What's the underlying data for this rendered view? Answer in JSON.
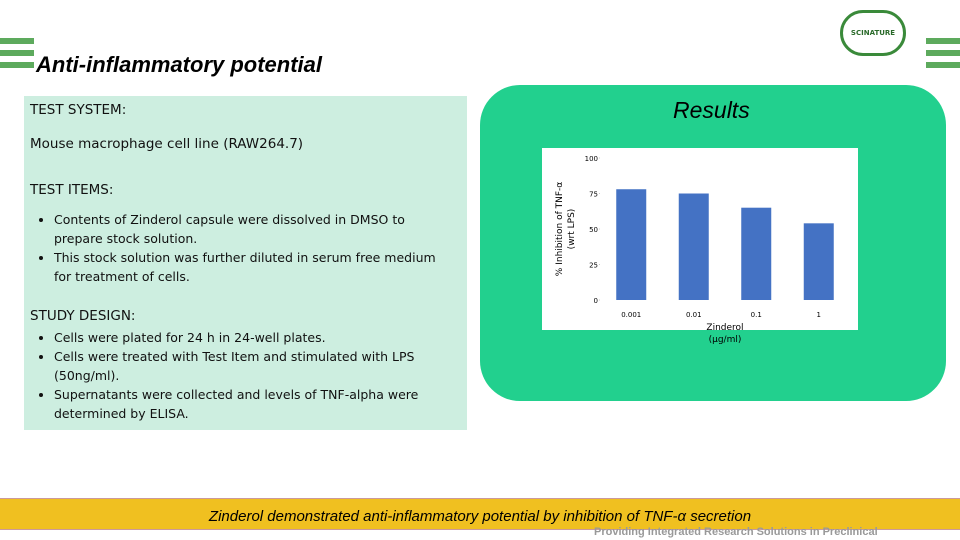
{
  "header": {
    "title": "Anti-inflammatory potential",
    "logo": "SCINATURE"
  },
  "left": {
    "test_system_heading": "TEST SYSTEM:",
    "test_system": "Mouse macrophage cell line (RAW264.7)",
    "test_items_heading": "TEST ITEMS:",
    "test_items": [
      "Contents of Zinderol capsule were dissolved in DMSO to prepare stock solution.",
      "This stock solution was further diluted in serum free medium for treatment of cells."
    ],
    "study_design_heading": "STUDY DESIGN:",
    "study_design": [
      "Cells were plated for 24 h in 24-well plates.",
      "Cells were treated with Test Item and stimulated with LPS (50ng/ml).",
      "Supernatants were collected and levels of TNF-alpha were determined by ELISA."
    ]
  },
  "results": {
    "title": "Results"
  },
  "chart_data": {
    "type": "bar",
    "categories": [
      "0.001",
      "0.01",
      "0.1",
      "1"
    ],
    "values": [
      78,
      75,
      65,
      54
    ],
    "color": "#4472c4",
    "ylim": [
      0,
      100
    ],
    "yticks": [
      0,
      25,
      50,
      75,
      100
    ],
    "y_label": [
      "% Inhibition of TNF-α",
      "(wrt LPS)"
    ],
    "x_label": [
      "Zinderol",
      "(µg/ml)"
    ]
  },
  "footer": {
    "conclusion": "Zinderol demonstrated anti-inflammatory potential by inhibition of TNF-α secretion",
    "tagline": "Providing Integrated Research Solutions in Preclinical"
  }
}
